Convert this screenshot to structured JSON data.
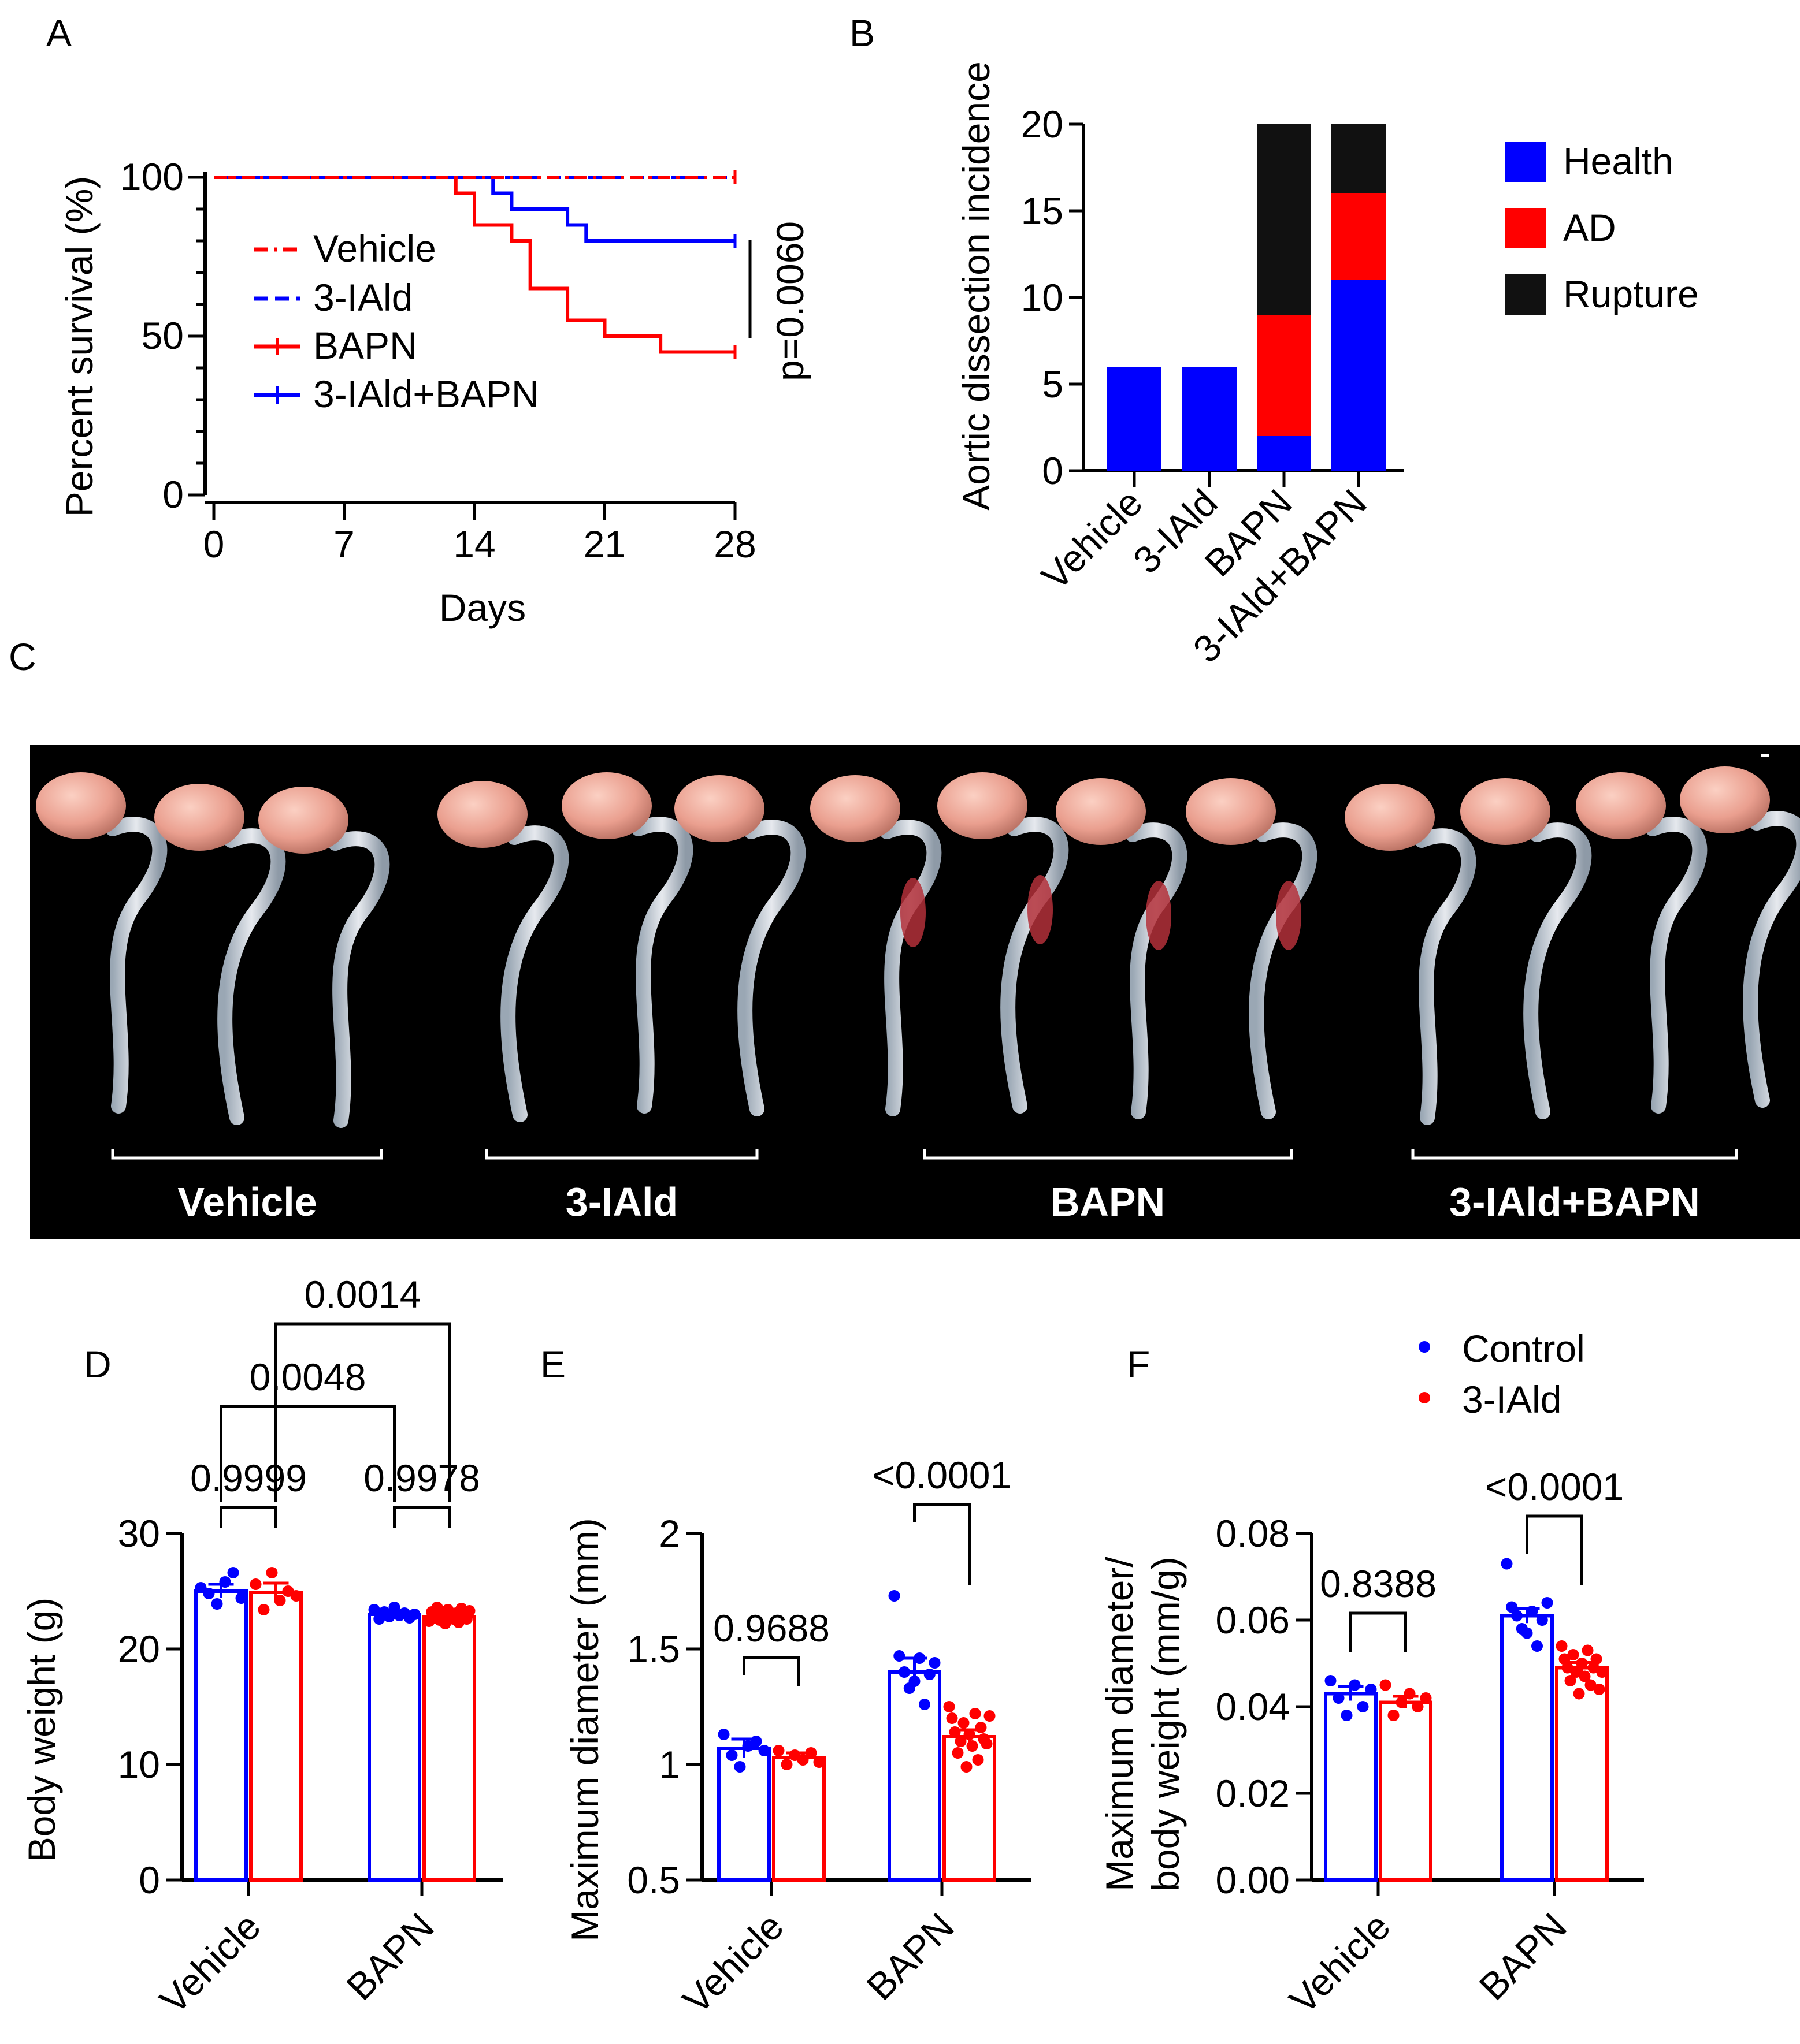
{
  "panel_letters": {
    "a": "A",
    "b": "B",
    "c": "C",
    "d": "D",
    "e": "E",
    "f": "F"
  },
  "colors": {
    "blue": "#0000ff",
    "red": "#ff0000",
    "black": "#000000",
    "photo_bg": "#000000"
  },
  "chart_data": [
    {
      "panel": "A",
      "type": "line",
      "subtype": "kaplan-meier",
      "title": "",
      "xlabel": "Days",
      "ylabel": "Percent survival (%)",
      "xlim": [
        0,
        28
      ],
      "ylim": [
        0,
        100
      ],
      "xticks": [
        0,
        7,
        14,
        21,
        28
      ],
      "yticks": [
        0,
        50,
        100
      ],
      "series": [
        {
          "name": "Vehicle",
          "color": "#ff0000",
          "style": "dash-dot",
          "steps": [
            [
              0,
              100
            ],
            [
              28,
              100
            ]
          ]
        },
        {
          "name": "3-IAld",
          "color": "#0000ff",
          "style": "dashed",
          "steps": [
            [
              0,
              100
            ],
            [
              28,
              100
            ]
          ]
        },
        {
          "name": "BAPN",
          "color": "#ff0000",
          "style": "solid",
          "steps": [
            [
              0,
              100
            ],
            [
              13,
              95
            ],
            [
              14,
              85
            ],
            [
              16,
              80
            ],
            [
              17,
              65
            ],
            [
              19,
              55
            ],
            [
              21,
              50
            ],
            [
              24,
              45
            ],
            [
              28,
              45
            ]
          ]
        },
        {
          "name": "3-IAld+BAPN",
          "color": "#0000ff",
          "style": "solid",
          "steps": [
            [
              0,
              100
            ],
            [
              15,
              95
            ],
            [
              16,
              90
            ],
            [
              19,
              85
            ],
            [
              20,
              80
            ],
            [
              28,
              80
            ]
          ]
        }
      ],
      "annotation": "p=0.0060"
    },
    {
      "panel": "B",
      "type": "bar",
      "subtype": "stacked",
      "title": "",
      "xlabel": "",
      "ylabel": "Aortic dissection incidence",
      "ylim": [
        0,
        20
      ],
      "yticks": [
        0,
        5,
        10,
        15,
        20
      ],
      "categories": [
        "Vehicle",
        "3-IAld",
        "BAPN",
        "3-IAld+BAPN"
      ],
      "series": [
        {
          "name": "Health",
          "color": "#0000ff",
          "values": [
            6,
            6,
            2,
            11
          ]
        },
        {
          "name": "AD",
          "color": "#ff0000",
          "values": [
            0,
            0,
            7,
            5
          ]
        },
        {
          "name": "Rupture",
          "color": "#111111",
          "values": [
            0,
            0,
            11,
            4
          ]
        }
      ],
      "legend": "right"
    },
    {
      "panel": "D",
      "type": "bar",
      "subtype": "grouped-with-points",
      "ylabel": "Body weight (g)",
      "ylim": [
        0,
        30
      ],
      "yticks": [
        0,
        10,
        20,
        30
      ],
      "categories": [
        "Vehicle",
        "BAPN"
      ],
      "series": [
        {
          "name": "Control",
          "color": "#0000ff",
          "values": [
            25.0,
            23.0
          ],
          "sem": [
            0.6,
            0.3
          ],
          "points": [
            [
              25.3,
              24.8,
              23.9,
              25.8,
              26.6,
              24.4
            ],
            [
              23.4,
              22.6,
              23.2,
              22.8,
              23.6,
              22.9,
              23.1,
              22.7,
              23.0
            ]
          ]
        },
        {
          "name": "3-IAld",
          "color": "#ff0000",
          "values": [
            24.9,
            22.8
          ],
          "sem": [
            0.8,
            0.2
          ],
          "points": [
            [
              25.6,
              23.4,
              26.6,
              24.2,
              25.0,
              24.6
            ],
            [
              22.4,
              23.2,
              22.7,
              23.6,
              22.5,
              23.0,
              22.2,
              23.4,
              22.9,
              22.6,
              23.1,
              22.3,
              23.5,
              22.8,
              22.6,
              23.3
            ]
          ]
        }
      ],
      "comparisons": [
        {
          "label": "0.9999",
          "from": [
            0,
            0
          ],
          "to": [
            0,
            1
          ]
        },
        {
          "label": "0.9978",
          "from": [
            1,
            0
          ],
          "to": [
            1,
            1
          ]
        },
        {
          "label": "0.0048",
          "from": [
            0,
            0
          ],
          "to": [
            1,
            0
          ]
        },
        {
          "label": "0.0014",
          "from": [
            0,
            1
          ],
          "to": [
            1,
            1
          ]
        }
      ]
    },
    {
      "panel": "E",
      "type": "bar",
      "subtype": "grouped-with-points",
      "ylabel": "Maximum diameter (mm)",
      "ylim": [
        0.5,
        2.0
      ],
      "yticks": [
        0.5,
        1.0,
        1.5,
        2.0
      ],
      "categories": [
        "Vehicle",
        "BAPN"
      ],
      "series": [
        {
          "name": "Control",
          "color": "#0000ff",
          "values": [
            1.07,
            1.4
          ],
          "sem": [
            0.04,
            0.06
          ],
          "points": [
            [
              1.13,
              1.04,
              0.99,
              1.08,
              1.1,
              1.06
            ],
            [
              1.73,
              1.47,
              1.4,
              1.33,
              1.36,
              1.46,
              1.26,
              1.39,
              1.44
            ]
          ]
        },
        {
          "name": "3-IAld",
          "color": "#ff0000",
          "values": [
            1.03,
            1.12
          ],
          "sem": [
            0.02,
            0.03
          ],
          "points": [
            [
              1.06,
              1.0,
              1.04,
              1.02,
              1.05,
              1.01
            ],
            [
              1.25,
              1.2,
              1.14,
              1.05,
              1.1,
              1.18,
              0.99,
              1.13,
              1.08,
              1.22,
              1.02,
              1.16,
              1.11,
              1.09,
              1.21
            ]
          ]
        }
      ],
      "comparisons": [
        {
          "label": "0.9688",
          "from": [
            0,
            0
          ],
          "to": [
            0,
            1
          ]
        },
        {
          "label": "<0.0001",
          "from": [
            1,
            0
          ],
          "to": [
            1,
            1
          ]
        }
      ]
    },
    {
      "panel": "F",
      "type": "bar",
      "subtype": "grouped-with-points",
      "ylabel_lines": [
        "Maximum diameter/",
        "body weight (mm/g)"
      ],
      "ylim": [
        0,
        0.08
      ],
      "yticks": [
        "0.00",
        "0.02",
        "0.04",
        "0.06",
        "0.08"
      ],
      "categories": [
        "Vehicle",
        "BAPN"
      ],
      "legend_entries": [
        "Control",
        "3-IAld"
      ],
      "series": [
        {
          "name": "Control",
          "color": "#0000ff",
          "values": [
            0.043,
            0.061
          ],
          "sem": [
            0.0016,
            0.0017
          ],
          "points": [
            [
              0.046,
              0.042,
              0.038,
              0.045,
              0.04,
              0.044
            ],
            [
              0.073,
              0.063,
              0.061,
              0.058,
              0.057,
              0.062,
              0.054,
              0.06,
              0.064
            ]
          ]
        },
        {
          "name": "3-IAld",
          "color": "#ff0000",
          "values": [
            0.041,
            0.049
          ],
          "sem": [
            0.0014,
            0.0012
          ],
          "points": [
            [
              0.045,
              0.038,
              0.041,
              0.043,
              0.04,
              0.042
            ],
            [
              0.054,
              0.051,
              0.049,
              0.046,
              0.052,
              0.048,
              0.043,
              0.05,
              0.047,
              0.053,
              0.045,
              0.049,
              0.051,
              0.044,
              0.048
            ]
          ]
        }
      ],
      "comparisons": [
        {
          "label": "0.8388",
          "from": [
            0,
            0
          ],
          "to": [
            0,
            1
          ]
        },
        {
          "label": "<0.0001",
          "from": [
            1,
            0
          ],
          "to": [
            1,
            1
          ]
        }
      ]
    }
  ],
  "photo": {
    "group_labels": [
      "Vehicle",
      "3-IAld",
      "BAPN",
      "3-IAld+BAPN"
    ],
    "specimens_per_group": [
      3,
      3,
      4,
      4
    ]
  }
}
